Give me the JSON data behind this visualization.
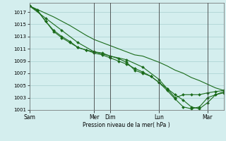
{
  "background_color": "#d4eeee",
  "grid_color": "#aed4d4",
  "line_color": "#1a6b1a",
  "marker_color": "#1a6b1a",
  "xlabel": "Pression niveau de la mer( hPa )",
  "ylim": [
    1001,
    1018.5
  ],
  "yticks": [
    1001,
    1003,
    1005,
    1007,
    1009,
    1011,
    1013,
    1015,
    1017
  ],
  "day_labels": [
    "Sam",
    "Mer",
    "Dim",
    "Lun",
    "Mar"
  ],
  "day_tick_x": [
    0,
    96,
    120,
    192,
    264
  ],
  "vline_x": [
    96,
    120,
    192,
    264
  ],
  "xlim": [
    0,
    288
  ],
  "series1_x": [
    0,
    12,
    24,
    36,
    48,
    60,
    72,
    84,
    96,
    108,
    120,
    132,
    144,
    156,
    168,
    180,
    192,
    204,
    216,
    228,
    240,
    252,
    264,
    276,
    288
  ],
  "series1_y": [
    1018.0,
    1017.4,
    1016.8,
    1016.2,
    1015.5,
    1014.8,
    1014.0,
    1013.2,
    1012.5,
    1012.0,
    1011.5,
    1011.0,
    1010.5,
    1010.0,
    1009.8,
    1009.3,
    1008.8,
    1008.2,
    1007.5,
    1007.0,
    1006.3,
    1005.8,
    1005.2,
    1004.6,
    1004.2
  ],
  "series2_x": [
    0,
    12,
    24,
    36,
    48,
    60,
    72,
    84,
    96,
    108,
    120,
    132,
    144,
    156,
    168,
    180,
    192,
    204,
    216,
    228,
    240,
    252,
    264,
    276,
    288
  ],
  "series2_y": [
    1018.0,
    1017.2,
    1015.5,
    1014.0,
    1013.0,
    1012.2,
    1011.2,
    1010.8,
    1010.5,
    1010.3,
    1009.8,
    1009.4,
    1008.8,
    1007.5,
    1007.0,
    1006.5,
    1005.5,
    1004.5,
    1003.5,
    1002.6,
    1001.5,
    1001.2,
    1002.2,
    1003.5,
    1004.0
  ],
  "series3_x": [
    0,
    12,
    24,
    36,
    48,
    60,
    72,
    84,
    96,
    108,
    120,
    132,
    144,
    156,
    168,
    180,
    192,
    204,
    216,
    228,
    240,
    252,
    264,
    276,
    288
  ],
  "series3_y": [
    1018.0,
    1017.3,
    1015.5,
    1013.8,
    1012.8,
    1012.0,
    1011.2,
    1010.8,
    1010.3,
    1010.0,
    1009.5,
    1009.0,
    1008.5,
    1007.8,
    1007.2,
    1006.5,
    1005.5,
    1004.2,
    1002.8,
    1001.5,
    1001.2,
    1001.5,
    1003.0,
    1003.5,
    1003.8
  ],
  "series4_x": [
    0,
    24,
    48,
    72,
    96,
    120,
    144,
    168,
    192,
    204,
    216,
    228,
    240,
    252,
    264,
    276,
    288
  ],
  "series4_y": [
    1018.0,
    1016.0,
    1014.0,
    1012.0,
    1010.5,
    1009.8,
    1009.2,
    1008.0,
    1006.0,
    1004.5,
    1003.0,
    1003.5,
    1003.5,
    1003.5,
    1003.8,
    1004.0,
    1004.2
  ]
}
